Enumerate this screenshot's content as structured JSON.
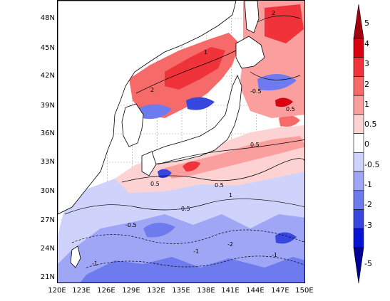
{
  "map": {
    "lat_labels": [
      "48N",
      "45N",
      "42N",
      "39N",
      "36N",
      "33N",
      "30N",
      "27N",
      "24N",
      "21N"
    ],
    "lon_labels": [
      "120E",
      "123E",
      "126E",
      "129E",
      "132E",
      "135E",
      "138E",
      "141E",
      "144E",
      "147E",
      "150E"
    ],
    "contour_labels": [
      "-1",
      "-0.5",
      "0.5",
      "1",
      "2",
      "-2",
      "1",
      "0.5",
      "-0.5",
      "-1",
      "0.5",
      "-0.5",
      "2",
      "0.5",
      "-1"
    ]
  },
  "colorbar": {
    "levels": [
      "5",
      "4",
      "3",
      "2",
      "1",
      "0.5",
      "0",
      "-0.5",
      "-1",
      "-2",
      "-3",
      "-5"
    ],
    "colors": [
      "#a50010",
      "#d9000f",
      "#f0333a",
      "#f76a6a",
      "#fa9e9e",
      "#fcd2d2",
      "#ffffff",
      "#cfd2fb",
      "#9ea6f5",
      "#6d7bee",
      "#3846e0",
      "#0613d6",
      "#00009a"
    ]
  }
}
